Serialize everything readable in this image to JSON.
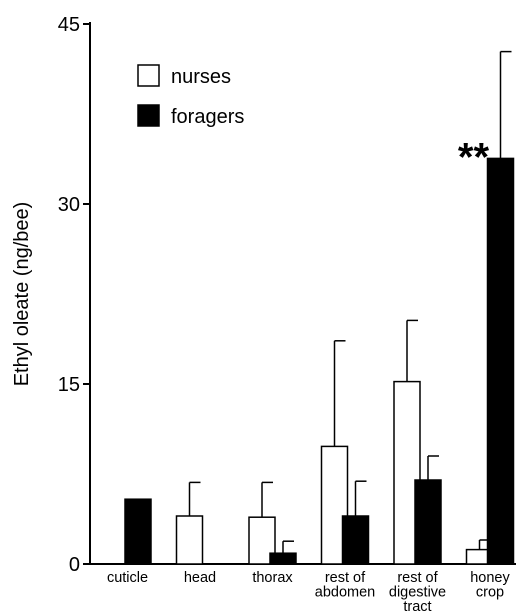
{
  "chart_data": {
    "type": "bar",
    "ylabel": "Ethyl oleate (ng/bee)",
    "ylim": [
      0,
      45
    ],
    "yticks": [
      0,
      15,
      30,
      45
    ],
    "categories": [
      [
        "cuticle"
      ],
      [
        "head"
      ],
      [
        "thorax"
      ],
      [
        "rest of",
        "abdomen"
      ],
      [
        "rest of",
        "digestive",
        "tract"
      ],
      [
        "honey",
        "crop"
      ]
    ],
    "series": [
      {
        "name": "nurses",
        "fill": "#ffffff",
        "values": [
          0,
          4.0,
          3.9,
          9.8,
          15.2,
          1.2
        ],
        "errors": [
          0,
          2.8,
          2.9,
          8.8,
          5.1,
          0.8
        ]
      },
      {
        "name": "foragers",
        "fill": "#000000",
        "values": [
          5.4,
          0,
          0.9,
          4.0,
          7.0,
          33.8
        ],
        "errors": [
          0,
          0,
          1.0,
          2.9,
          2.0,
          8.9
        ]
      }
    ],
    "annotations": [
      {
        "text": "**",
        "category_index": 5,
        "series_index": 1
      }
    ],
    "legend_placement": "top-left",
    "grid": false
  }
}
